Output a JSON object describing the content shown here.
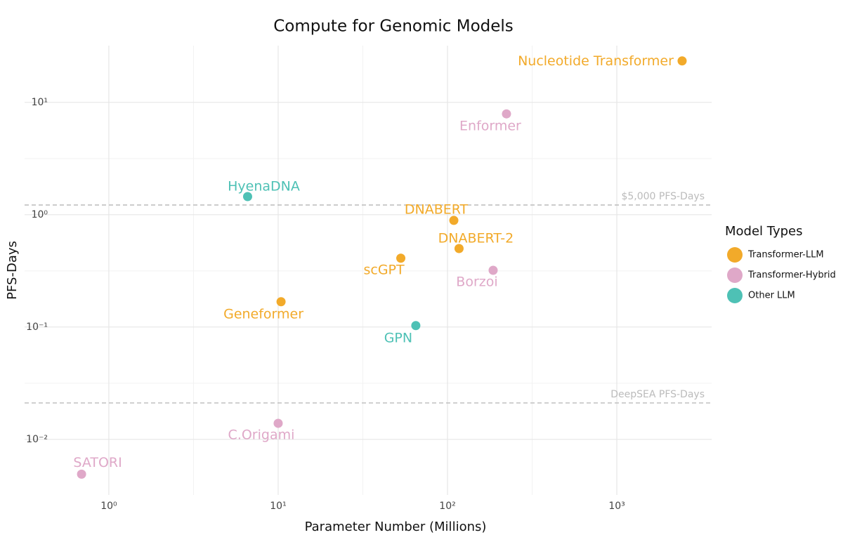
{
  "chart_data": {
    "type": "scatter",
    "title": "Compute for Genomic Models",
    "x_label": "Parameter Number (Millions)",
    "y_label": "PFS-Days",
    "x_log": true,
    "y_log": true,
    "grid": true,
    "xlim": [
      0.318,
      3630
    ],
    "ylim": [
      0.0032,
      32
    ],
    "xticks": [
      {
        "value": 1,
        "label": "10⁰"
      },
      {
        "value": 10,
        "label": "10¹"
      },
      {
        "value": 100,
        "label": "10²"
      },
      {
        "value": 1000,
        "label": "10³"
      }
    ],
    "yticks": [
      {
        "value": 0.01,
        "label": "10⁻²"
      },
      {
        "value": 0.1,
        "label": "10⁻¹"
      },
      {
        "value": 1,
        "label": "10⁰"
      },
      {
        "value": 10,
        "label": "10¹"
      }
    ],
    "legend_title": "Model Types",
    "legend_position": "right",
    "reference_lines": [
      {
        "value": 1.22,
        "label": "$5,000 PFS-Days"
      },
      {
        "value": 0.0211,
        "label": "DeepSEA PFS-Days"
      }
    ],
    "series": [
      {
        "name": "Transformer-LLM",
        "color": "#f2aa2a",
        "labels": [
          "Nucleotide Transformer",
          "DNABERT",
          "DNABERT-2",
          "scGPT",
          "Geneformer"
        ],
        "x": [
          2430,
          109,
          117,
          53,
          10.4
        ],
        "values": [
          23.4,
          0.89,
          0.5,
          0.41,
          0.168
        ]
      },
      {
        "name": "Transformer-Hybrid",
        "color": "#dfa8c8",
        "labels": [
          "Enformer",
          "Borzoi",
          "C.Origami",
          "SATORI"
        ],
        "x": [
          223,
          186,
          10,
          0.69
        ],
        "values": [
          7.9,
          0.32,
          0.0139,
          0.0049
        ]
      },
      {
        "name": "Other LLM",
        "color": "#4ec1b5",
        "labels": [
          "HyenaDNA",
          "GPN"
        ],
        "x": [
          6.6,
          65
        ],
        "values": [
          1.45,
          0.103
        ]
      }
    ]
  }
}
